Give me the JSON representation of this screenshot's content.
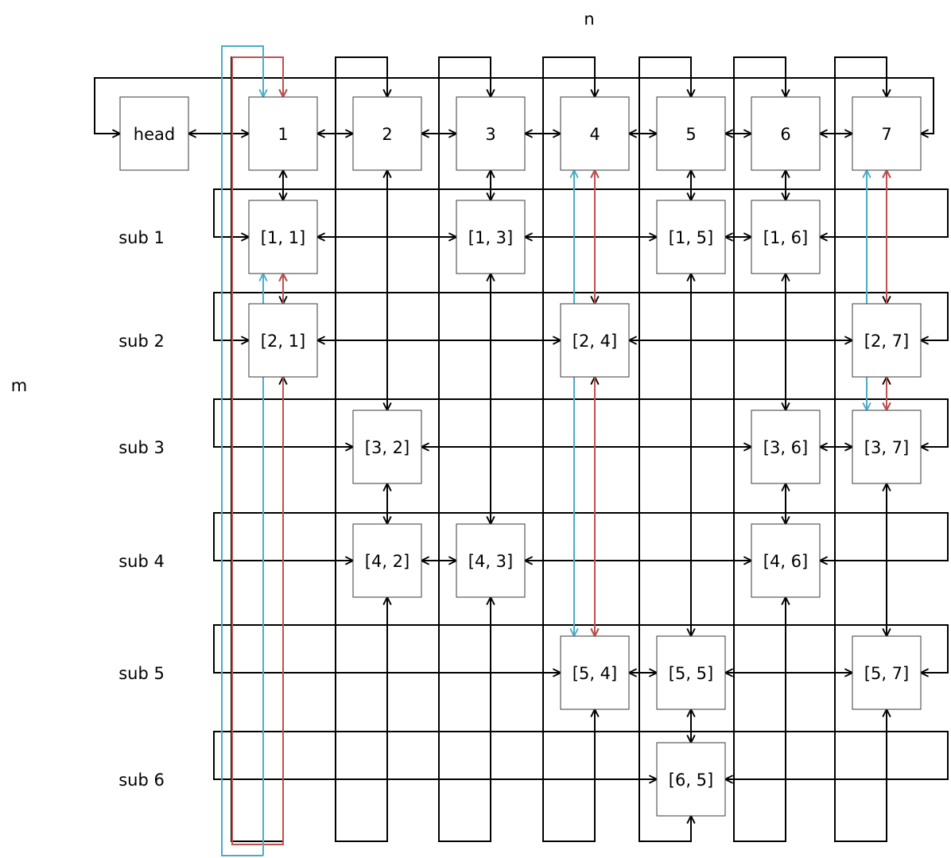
{
  "axes": {
    "n_label": "n",
    "m_label": "m"
  },
  "head_label": "head",
  "columns": [
    "1",
    "2",
    "3",
    "4",
    "5",
    "6",
    "7"
  ],
  "rows": [
    "sub 1",
    "sub 2",
    "sub 3",
    "sub 4",
    "sub 5",
    "sub 6"
  ],
  "cells": [
    {
      "label": "[1, 1]",
      "row": 1,
      "col": 1
    },
    {
      "label": "[1, 3]",
      "row": 1,
      "col": 3
    },
    {
      "label": "[1, 5]",
      "row": 1,
      "col": 5
    },
    {
      "label": "[1, 6]",
      "row": 1,
      "col": 6
    },
    {
      "label": "[2, 1]",
      "row": 2,
      "col": 1
    },
    {
      "label": "[2, 4]",
      "row": 2,
      "col": 4
    },
    {
      "label": "[2, 7]",
      "row": 2,
      "col": 7
    },
    {
      "label": "[3, 2]",
      "row": 3,
      "col": 2
    },
    {
      "label": "[3, 6]",
      "row": 3,
      "col": 6
    },
    {
      "label": "[3, 7]",
      "row": 3,
      "col": 7
    },
    {
      "label": "[4, 2]",
      "row": 4,
      "col": 2
    },
    {
      "label": "[4, 3]",
      "row": 4,
      "col": 3
    },
    {
      "label": "[4, 6]",
      "row": 4,
      "col": 6
    },
    {
      "label": "[5, 4]",
      "row": 5,
      "col": 4
    },
    {
      "label": "[5, 5]",
      "row": 5,
      "col": 5
    },
    {
      "label": "[5, 7]",
      "row": 5,
      "col": 7
    },
    {
      "label": "[6, 5]",
      "row": 6,
      "col": 5
    }
  ],
  "colors": {
    "link": "#000000",
    "node_border": "#3a3a3a",
    "path_red": "#c0504d",
    "path_blue": "#4bacc6"
  }
}
